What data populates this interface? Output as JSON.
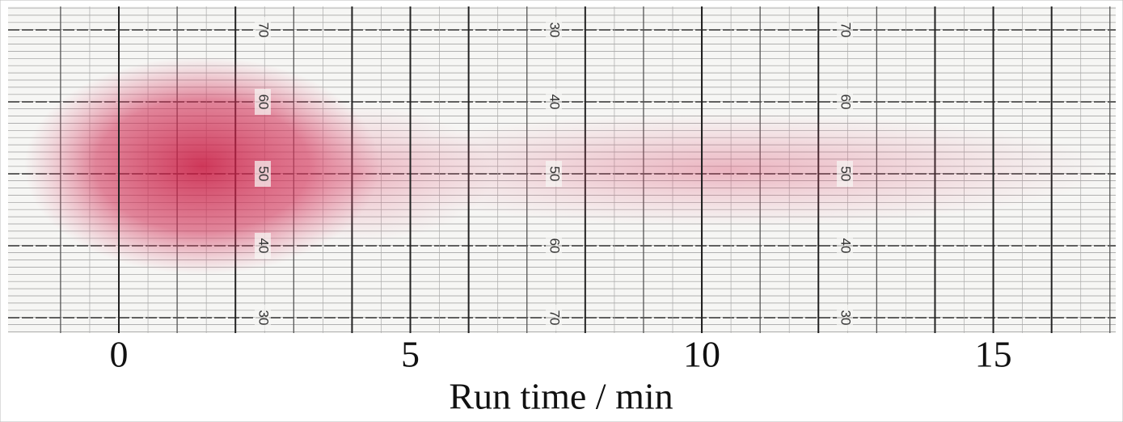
{
  "chart_data": {
    "type": "strip-chart",
    "x_label": "Run time / min",
    "xlim": [
      -1.9,
      17.1
    ],
    "xticks": [
      0,
      5,
      10,
      15
    ],
    "paper_labels": [
      [
        70,
        60,
        50,
        40,
        30
      ],
      [
        30,
        40,
        50,
        60,
        70
      ],
      [
        70,
        60,
        50,
        40,
        30
      ]
    ]
  }
}
